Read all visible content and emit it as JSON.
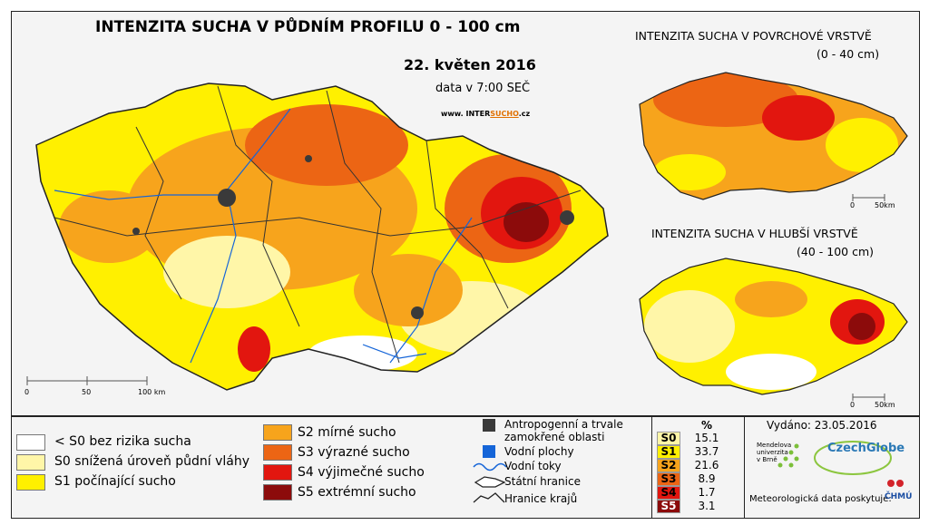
{
  "main": {
    "title": "INTENZITA SUCHA V PŮDNÍM PROFILU 0 - 100 cm",
    "date": "22. květen 2016",
    "time": "data v 7:00 SEČ",
    "website_prefix": "www. INTER",
    "website_brand": "SUCHO",
    "website_suffix": ".cz",
    "scale": [
      "0",
      "50",
      "100 km"
    ]
  },
  "inset_surface": {
    "title": "INTENZITA SUCHA V POVRCHOVÉ VRSTVĚ",
    "subtitle": "(0 - 40 cm)",
    "scale": [
      "0",
      "50km"
    ]
  },
  "inset_deep": {
    "title": "INTENZITA SUCHA V HLUBŠÍ VRSTVĚ",
    "subtitle": "(40 - 100 cm)",
    "scale": [
      "0",
      "50km"
    ]
  },
  "legend": {
    "classes": [
      {
        "label": "< S0 bez rizika sucha",
        "color": "#ffffff"
      },
      {
        "label": "S0 snížená úroveň půdní vláhy",
        "color": "#fff6a8"
      },
      {
        "label": "S1 počínající sucho",
        "color": "#fff000"
      },
      {
        "label": "S2 mírné sucho",
        "color": "#f7a41c"
      },
      {
        "label": "S3 výrazné sucho",
        "color": "#ec6514"
      },
      {
        "label": "S4 výjimečné sucho",
        "color": "#e2160f"
      },
      {
        "label": "S5 extrémní sucho",
        "color": "#8c0b0b"
      }
    ],
    "features": [
      {
        "label": "Antropogenní a trvale zamokřené oblasti",
        "line1": "Antropogenní a trvale",
        "line2": "zamokřené oblasti",
        "icon": "urban-area-icon",
        "color": "#3a3a3a"
      },
      {
        "label": "Vodní plochy",
        "icon": "water-body-icon",
        "color": "#1565d8"
      },
      {
        "label": "Vodní toky",
        "icon": "river-icon",
        "color": "#1565d8"
      },
      {
        "label": "Státní hranice",
        "icon": "state-border-icon"
      },
      {
        "label": "Hranice krajů",
        "icon": "region-border-icon"
      }
    ]
  },
  "stats": {
    "header": "%",
    "rows": [
      {
        "cls": "S0",
        "value": "15.1",
        "color": "#fff6a8"
      },
      {
        "cls": "S1",
        "value": "33.7",
        "color": "#fff000"
      },
      {
        "cls": "S2",
        "value": "21.6",
        "color": "#f7a41c"
      },
      {
        "cls": "S3",
        "value": "8.9",
        "color": "#ec6514"
      },
      {
        "cls": "S4",
        "value": "1.7",
        "color": "#e2160f"
      },
      {
        "cls": "S5",
        "value": "3.1",
        "color": "#8c0b0b"
      }
    ]
  },
  "credits": {
    "issued": "Vydáno: 23.05.2016",
    "mendel": "Mendelova univerzita v Brně",
    "czechglobe": "CzechGlobe",
    "met_data": "Meteorologická data poskytuje:",
    "chmu": "ČHMÚ"
  }
}
